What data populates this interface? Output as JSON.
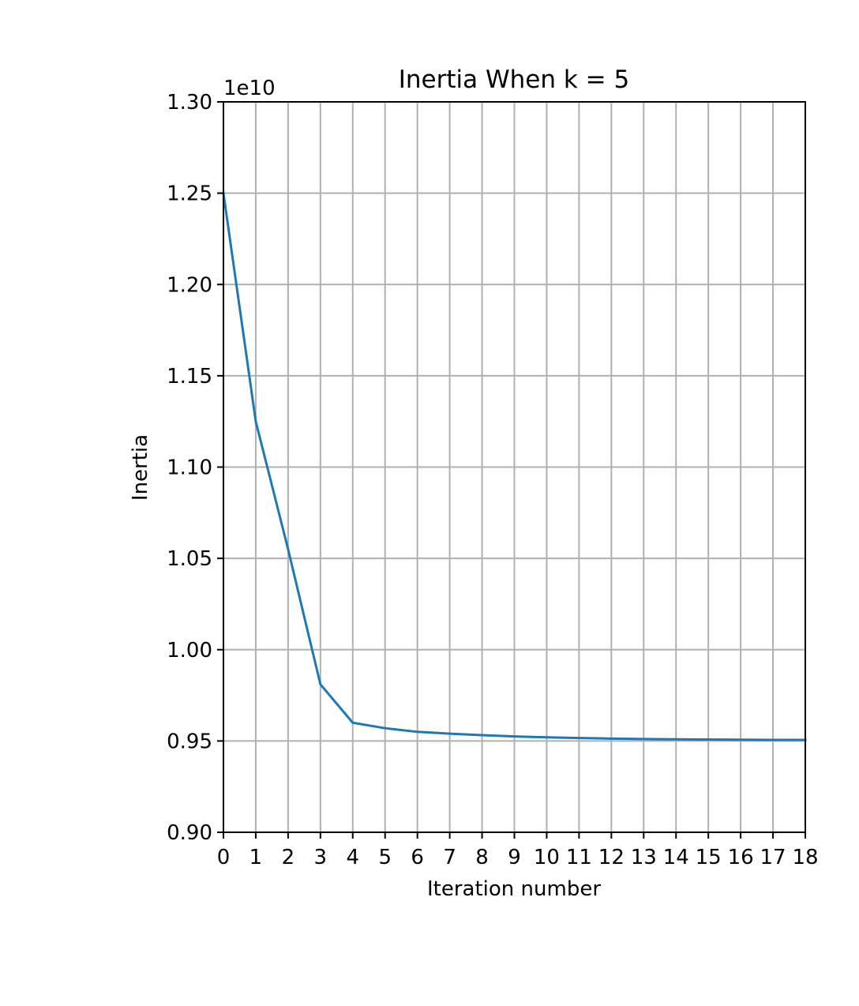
{
  "chart_data": {
    "type": "line",
    "title": "Inertia When k = 5",
    "xlabel": "Iteration number",
    "ylabel": "Inertia",
    "y_offset_text": "1e10",
    "xlim": [
      0,
      18
    ],
    "ylim": [
      0.9,
      1.3
    ],
    "grid": true,
    "x_ticks": [
      0,
      1,
      2,
      3,
      4,
      5,
      6,
      7,
      8,
      9,
      10,
      11,
      12,
      13,
      14,
      15,
      16,
      17,
      18
    ],
    "x_tick_labels": [
      "0",
      "1",
      "2",
      "3",
      "4",
      "5",
      "6",
      "7",
      "8",
      "9",
      "10",
      "11",
      "12",
      "13",
      "14",
      "15",
      "16",
      "17",
      "18"
    ],
    "y_ticks": [
      0.9,
      0.95,
      1.0,
      1.05,
      1.1,
      1.15,
      1.2,
      1.25,
      1.3
    ],
    "y_tick_labels": [
      "0.90",
      "0.95",
      "1.00",
      "1.05",
      "1.10",
      "1.15",
      "1.20",
      "1.25",
      "1.30"
    ],
    "series": [
      {
        "color": "#1f77b4",
        "x": [
          0,
          1,
          2,
          3,
          4,
          5,
          6,
          7,
          8,
          9,
          10,
          11,
          12,
          13,
          14,
          15,
          16,
          17,
          18
        ],
        "y": [
          1.25,
          1.125,
          1.055,
          0.981,
          0.96,
          0.957,
          0.955,
          0.954,
          0.9532,
          0.9525,
          0.952,
          0.9516,
          0.9513,
          0.9511,
          0.9509,
          0.9508,
          0.9507,
          0.9506,
          0.9506
        ]
      }
    ]
  }
}
